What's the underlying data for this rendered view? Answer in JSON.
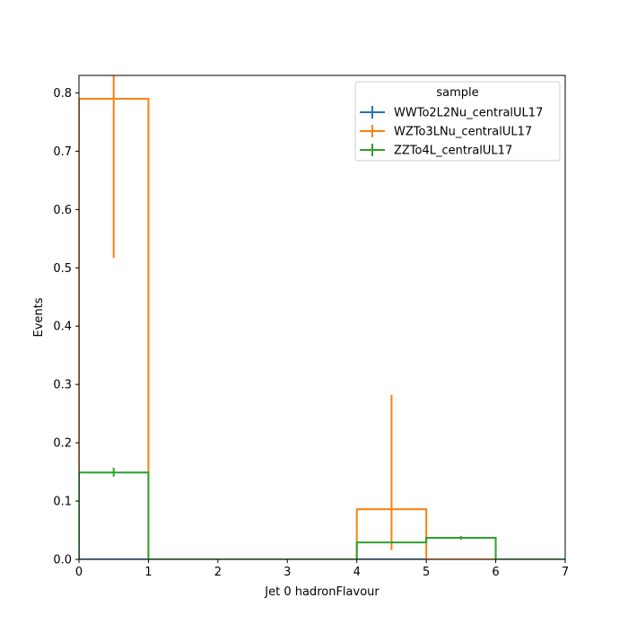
{
  "chart_data": {
    "type": "histogram",
    "xlabel": "Jet 0 hadronFlavour",
    "ylabel": "Events",
    "xlim": [
      0,
      7
    ],
    "ylim": [
      0,
      0.83
    ],
    "xticks": [
      "0",
      "1",
      "2",
      "3",
      "4",
      "5",
      "6",
      "7"
    ],
    "yticks": [
      "0.0",
      "0.1",
      "0.2",
      "0.3",
      "0.4",
      "0.5",
      "0.6",
      "0.7",
      "0.8"
    ],
    "bin_edges": [
      0,
      1,
      2,
      3,
      4,
      5,
      6,
      7
    ],
    "legend": {
      "title": "sample",
      "placement": "top-right"
    },
    "grid": false,
    "series": [
      {
        "name": "WWTo2L2Nu_centralUL17",
        "color": "#1f77b4",
        "values": [
          0,
          0,
          0,
          0,
          0,
          0,
          0
        ],
        "errors": [
          {
            "x": 0.5,
            "low": 0,
            "high": 0
          },
          {
            "x": 4.5,
            "low": 0,
            "high": 0
          }
        ]
      },
      {
        "name": "WZTo3LNu_centralUL17",
        "color": "#ff7f0e",
        "values": [
          0.79,
          0,
          0,
          0,
          0.086,
          0,
          0
        ],
        "errors": [
          {
            "x": 0.5,
            "low": 0.517,
            "high": 0.83
          },
          {
            "x": 4.5,
            "low": 0.016,
            "high": 0.282
          }
        ]
      },
      {
        "name": "ZZTo4L_centralUL17",
        "color": "#2ca02c",
        "values": [
          0.149,
          0,
          0,
          0,
          0.029,
          0.037,
          0
        ],
        "errors": [
          {
            "x": 0.5,
            "low": 0.142,
            "high": 0.157
          },
          {
            "x": 4.5,
            "low": 0.027,
            "high": 0.031
          },
          {
            "x": 5.5,
            "low": 0.034,
            "high": 0.04
          }
        ]
      }
    ]
  }
}
